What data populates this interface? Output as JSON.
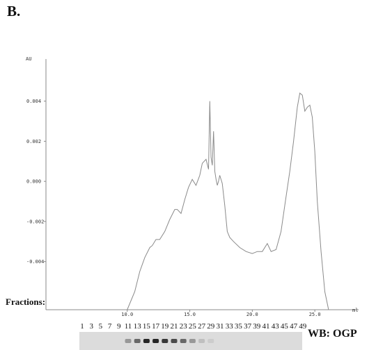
{
  "panel_label": "B.",
  "fractions_label": "Fractions:",
  "blot_label": "WB: OGP",
  "fraction_numbers": [
    "1",
    "3",
    "5",
    "7",
    "9",
    "11",
    "13",
    "15",
    "17",
    "19",
    "21",
    "23",
    "25",
    "27",
    "29",
    "31",
    "33",
    "35",
    "37",
    "39",
    "41",
    "43",
    "45",
    "47",
    "49"
  ],
  "blot_band_intensity": [
    0,
    0,
    0,
    0,
    0,
    0.35,
    0.6,
    0.95,
    0.95,
    0.85,
    0.75,
    0.6,
    0.35,
    0.15,
    0.08,
    0,
    0,
    0,
    0,
    0,
    0,
    0,
    0,
    0,
    0
  ],
  "colors": {
    "trace": "#8a8a8a",
    "axis": "#888888",
    "blot_bg": "#dcdcdc",
    "band": "#1a1a1a"
  },
  "chart_data": {
    "type": "line",
    "title": "",
    "xlabel": "ml",
    "ylabel": "AU",
    "xlim": [
      3.5,
      28.5
    ],
    "ylim": [
      -0.0064,
      0.0061
    ],
    "x_ticks": [
      10.0,
      15.0,
      20.0,
      25.0
    ],
    "x_tick_labels": [
      "10.0",
      "15.0",
      "20.0",
      "25.0"
    ],
    "y_ticks": [
      0.004,
      0.002,
      0.0,
      -0.002,
      -0.004
    ],
    "y_tick_labels": [
      "0.004",
      "0.002",
      "0.000",
      "-0.002",
      "-0.004"
    ],
    "grid": false,
    "series": [
      {
        "x": [
          10.0,
          10.6,
          11.0,
          11.4,
          11.8,
          12.0,
          12.3,
          12.6,
          13.0,
          13.4,
          13.8,
          14.0,
          14.3,
          14.6,
          14.9,
          15.2,
          15.5,
          15.8,
          16.0,
          16.3,
          16.5,
          16.6,
          16.7,
          16.8,
          16.9,
          17.0,
          17.1,
          17.2,
          17.3,
          17.4,
          17.6,
          17.8,
          18.0,
          18.2,
          18.5,
          19.0,
          19.5,
          20.0,
          20.4,
          20.8,
          21.2,
          21.5,
          21.9,
          22.3,
          22.6,
          23.0,
          23.3,
          23.6,
          23.8,
          24.0,
          24.2,
          24.4,
          24.6,
          24.8,
          25.0,
          25.2,
          25.5,
          25.8,
          26.1,
          26.4
        ],
        "y": [
          -0.0064,
          -0.0055,
          -0.0045,
          -0.0038,
          -0.0033,
          -0.0032,
          -0.0029,
          -0.0029,
          -0.0025,
          -0.0019,
          -0.0014,
          -0.0014,
          -0.0016,
          -0.0009,
          -0.0003,
          0.0001,
          -0.0002,
          0.0003,
          0.0009,
          0.0011,
          0.0006,
          0.004,
          0.0012,
          0.0008,
          0.0025,
          0.0005,
          0.0001,
          -0.0002,
          0.0,
          0.0003,
          -0.0001,
          -0.0012,
          -0.0025,
          -0.0028,
          -0.003,
          -0.0033,
          -0.0035,
          -0.0036,
          -0.0035,
          -0.0035,
          -0.0031,
          -0.0035,
          -0.0034,
          -0.0025,
          -0.0012,
          0.0005,
          0.002,
          0.0037,
          0.0044,
          0.0043,
          0.0035,
          0.0037,
          0.0038,
          0.0032,
          0.0015,
          -0.001,
          -0.0035,
          -0.0055,
          -0.0064,
          -0.0064
        ]
      }
    ]
  }
}
